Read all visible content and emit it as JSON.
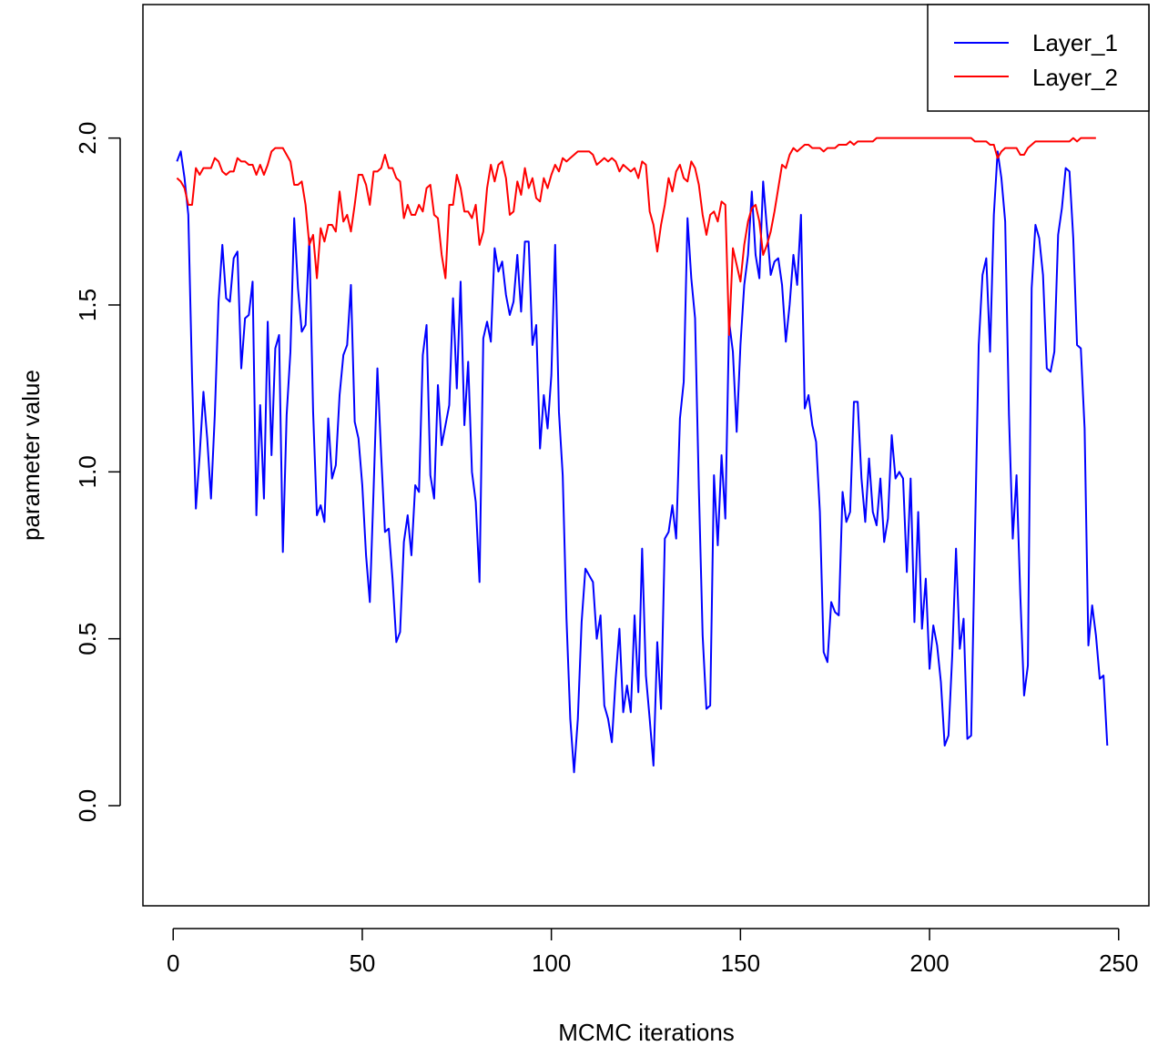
{
  "chart_data": {
    "type": "line",
    "title": "",
    "xlabel": "MCMC iterations",
    "ylabel": "parameter value",
    "xlim": [
      -8,
      258
    ],
    "ylim": [
      -0.3,
      2.4
    ],
    "xticks": [
      0,
      50,
      100,
      150,
      200,
      250
    ],
    "yticks": [
      0.0,
      0.5,
      1.0,
      1.5,
      2.0
    ],
    "xtick_labels": [
      "0",
      "50",
      "100",
      "150",
      "200",
      "250"
    ],
    "ytick_labels": [
      "0.0",
      "0.5",
      "1.0",
      "1.5",
      "2.0"
    ],
    "grid": false,
    "legend": {
      "placement": "top-right"
    },
    "series": [
      {
        "name": "Layer_1",
        "color": "#0000ff",
        "x_start": 1,
        "values": [
          1.93,
          1.96,
          1.88,
          1.77,
          1.28,
          0.89,
          1.05,
          1.24,
          1.1,
          0.92,
          1.17,
          1.51,
          1.68,
          1.52,
          1.51,
          1.64,
          1.66,
          1.31,
          1.46,
          1.47,
          1.57,
          0.87,
          1.2,
          0.92,
          1.45,
          1.05,
          1.37,
          1.41,
          0.76,
          1.17,
          1.36,
          1.76,
          1.55,
          1.42,
          1.44,
          1.7,
          1.18,
          0.87,
          0.9,
          0.85,
          1.16,
          0.98,
          1.02,
          1.23,
          1.35,
          1.38,
          1.56,
          1.15,
          1.1,
          0.96,
          0.75,
          0.61,
          0.95,
          1.31,
          1.05,
          0.82,
          0.83,
          0.68,
          0.49,
          0.52,
          0.79,
          0.87,
          0.75,
          0.96,
          0.94,
          1.35,
          1.44,
          0.99,
          0.92,
          1.26,
          1.08,
          1.14,
          1.2,
          1.52,
          1.25,
          1.57,
          1.14,
          1.33,
          1.0,
          0.91,
          0.67,
          1.4,
          1.45,
          1.39,
          1.67,
          1.6,
          1.63,
          1.53,
          1.47,
          1.51,
          1.65,
          1.48,
          1.69,
          1.69,
          1.38,
          1.44,
          1.07,
          1.23,
          1.13,
          1.29,
          1.68,
          1.18,
          0.99,
          0.56,
          0.26,
          0.1,
          0.26,
          0.55,
          0.71,
          0.69,
          0.67,
          0.5,
          0.57,
          0.3,
          0.26,
          0.19,
          0.38,
          0.53,
          0.28,
          0.36,
          0.28,
          0.57,
          0.34,
          0.77,
          0.39,
          0.26,
          0.12,
          0.49,
          0.29,
          0.8,
          0.82,
          0.9,
          0.8,
          1.16,
          1.27,
          1.76,
          1.58,
          1.46,
          0.95,
          0.51,
          0.29,
          0.3,
          0.99,
          0.78,
          1.05,
          0.86,
          1.45,
          1.36,
          1.12,
          1.38,
          1.56,
          1.65,
          1.84,
          1.65,
          1.58,
          1.87,
          1.73,
          1.59,
          1.63,
          1.64,
          1.56,
          1.39,
          1.5,
          1.65,
          1.56,
          1.77,
          1.19,
          1.23,
          1.14,
          1.09,
          0.88,
          0.46,
          0.43,
          0.61,
          0.58,
          0.57,
          0.94,
          0.85,
          0.88,
          1.21,
          1.21,
          0.98,
          0.85,
          1.04,
          0.88,
          0.84,
          0.98,
          0.79,
          0.86,
          1.11,
          0.98,
          1.0,
          0.98,
          0.7,
          0.98,
          0.55,
          0.88,
          0.53,
          0.68,
          0.41,
          0.54,
          0.48,
          0.37,
          0.18,
          0.21,
          0.45,
          0.77,
          0.47,
          0.56,
          0.2,
          0.21,
          0.8,
          1.38,
          1.59,
          1.64,
          1.36,
          1.77,
          1.96,
          1.88,
          1.75,
          1.17,
          0.8,
          0.99,
          0.63,
          0.33,
          0.42,
          1.55,
          1.74,
          1.7,
          1.59,
          1.31,
          1.3,
          1.36,
          1.71,
          1.79,
          1.91,
          1.9,
          1.7,
          1.38,
          1.37,
          1.13,
          0.48,
          0.6,
          0.51,
          0.38,
          0.39,
          0.18
        ]
      },
      {
        "name": "Layer_2",
        "color": "#ff0000",
        "x_start": 1,
        "values": [
          1.88,
          1.87,
          1.85,
          1.8,
          1.8,
          1.91,
          1.89,
          1.91,
          1.91,
          1.91,
          1.94,
          1.93,
          1.9,
          1.89,
          1.9,
          1.9,
          1.94,
          1.93,
          1.93,
          1.92,
          1.92,
          1.89,
          1.92,
          1.89,
          1.92,
          1.96,
          1.97,
          1.97,
          1.97,
          1.95,
          1.93,
          1.86,
          1.86,
          1.87,
          1.8,
          1.68,
          1.71,
          1.58,
          1.73,
          1.69,
          1.74,
          1.74,
          1.72,
          1.84,
          1.75,
          1.77,
          1.72,
          1.8,
          1.89,
          1.89,
          1.86,
          1.8,
          1.9,
          1.9,
          1.91,
          1.95,
          1.91,
          1.91,
          1.88,
          1.87,
          1.76,
          1.8,
          1.77,
          1.77,
          1.8,
          1.78,
          1.85,
          1.86,
          1.77,
          1.76,
          1.65,
          1.58,
          1.8,
          1.8,
          1.89,
          1.85,
          1.78,
          1.78,
          1.76,
          1.8,
          1.68,
          1.72,
          1.85,
          1.92,
          1.87,
          1.92,
          1.93,
          1.88,
          1.77,
          1.78,
          1.87,
          1.83,
          1.91,
          1.85,
          1.88,
          1.82,
          1.81,
          1.88,
          1.85,
          1.89,
          1.92,
          1.9,
          1.94,
          1.93,
          1.94,
          1.95,
          1.96,
          1.96,
          1.96,
          1.96,
          1.95,
          1.92,
          1.93,
          1.94,
          1.93,
          1.94,
          1.93,
          1.9,
          1.92,
          1.91,
          1.9,
          1.91,
          1.88,
          1.93,
          1.92,
          1.78,
          1.74,
          1.66,
          1.74,
          1.8,
          1.88,
          1.84,
          1.9,
          1.92,
          1.88,
          1.87,
          1.93,
          1.91,
          1.86,
          1.77,
          1.71,
          1.77,
          1.78,
          1.75,
          1.81,
          1.8,
          1.41,
          1.67,
          1.62,
          1.57,
          1.68,
          1.75,
          1.79,
          1.8,
          1.75,
          1.65,
          1.68,
          1.72,
          1.78,
          1.85,
          1.92,
          1.91,
          1.95,
          1.97,
          1.96,
          1.97,
          1.98,
          1.98,
          1.97,
          1.97,
          1.97,
          1.96,
          1.97,
          1.97,
          1.97,
          1.98,
          1.98,
          1.98,
          1.99,
          1.98,
          1.99,
          1.99,
          1.99,
          1.99,
          1.99,
          2.0,
          2.0,
          2.0,
          2.0,
          2.0,
          2.0,
          2.0,
          2.0,
          2.0,
          2.0,
          2.0,
          2.0,
          2.0,
          2.0,
          2.0,
          2.0,
          2.0,
          2.0,
          2.0,
          2.0,
          2.0,
          2.0,
          2.0,
          2.0,
          2.0,
          2.0,
          1.99,
          1.99,
          1.99,
          1.99,
          1.98,
          1.98,
          1.94,
          1.96,
          1.97,
          1.97,
          1.97,
          1.97,
          1.95,
          1.95,
          1.97,
          1.98,
          1.99,
          1.99,
          1.99,
          1.99,
          1.99,
          1.99,
          1.99,
          1.99,
          1.99,
          1.99,
          2.0,
          1.99,
          2.0,
          2.0,
          2.0,
          2.0,
          2.0
        ]
      }
    ]
  }
}
